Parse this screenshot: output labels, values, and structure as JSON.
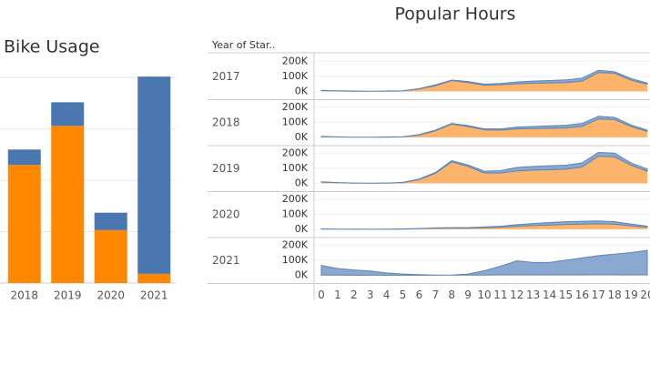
{
  "chart_data": [
    {
      "type": "bar",
      "title": "Bike Usage",
      "categories": [
        "2018",
        "2019",
        "2020",
        "2021"
      ],
      "series": [
        {
          "color": "#ff8800",
          "values": [
            2.3,
            3.06,
            1.03,
            0.18
          ]
        },
        {
          "color": "#4a77b0",
          "values": [
            0.3,
            0.46,
            0.34,
            3.84
          ]
        }
      ],
      "ylim": [
        0,
        4.2
      ],
      "gridlines": [
        1,
        2,
        3,
        4
      ],
      "stacked": true
    },
    {
      "type": "area",
      "title": "Popular Hours",
      "row_header": "Year of Star..",
      "x": [
        0,
        1,
        2,
        3,
        4,
        5,
        6,
        7,
        8,
        9,
        10,
        11,
        12,
        13,
        14,
        15,
        16,
        17,
        18,
        19,
        20
      ],
      "xlim": [
        0,
        20
      ],
      "ylim": [
        -55000,
        250000
      ],
      "yticks": [
        {
          "value": 0,
          "label": "0K"
        },
        {
          "value": 100000,
          "label": "100K"
        },
        {
          "value": 200000,
          "label": "200K"
        }
      ],
      "stacked": true,
      "panels": [
        {
          "label": "2017",
          "series": [
            {
              "color": "#fdb46a",
              "values": [
                5000,
                3000,
                1000,
                1000,
                1000,
                3000,
                16000,
                38000,
                72000,
                58000,
                42000,
                44000,
                50000,
                54000,
                56000,
                58000,
                68000,
                125000,
                120000,
                75000,
                47000
              ]
            },
            {
              "color": "#8aa8d0",
              "values": [
                2000,
                1000,
                1000,
                0,
                1000,
                1000,
                2000,
                5000,
                3000,
                7000,
                6000,
                8000,
                12000,
                14000,
                16000,
                18000,
                20000,
                15000,
                10000,
                10000,
                8000
              ]
            }
          ]
        },
        {
          "label": "2018",
          "series": [
            {
              "color": "#fdb46a",
              "values": [
                4000,
                2000,
                1000,
                1000,
                1000,
                3000,
                15000,
                43000,
                88000,
                72000,
                50000,
                48000,
                56000,
                58000,
                60000,
                62000,
                72000,
                122000,
                118000,
                72000,
                40000
              ]
            },
            {
              "color": "#8aa8d0",
              "values": [
                2000,
                1000,
                0,
                0,
                1000,
                1000,
                3000,
                5000,
                4000,
                6000,
                6000,
                8000,
                12000,
                14000,
                16000,
                18000,
                20000,
                18000,
                14000,
                10000,
                8000
              ]
            }
          ]
        },
        {
          "label": "2019",
          "series": [
            {
              "color": "#fdb46a",
              "values": [
                8000,
                4000,
                1000,
                1000,
                1000,
                5000,
                25000,
                66000,
                142000,
                112000,
                68000,
                68000,
                82000,
                88000,
                90000,
                94000,
                108000,
                180000,
                175000,
                120000,
                80000
              ]
            },
            {
              "color": "#8aa8d0",
              "values": [
                2000,
                1000,
                1000,
                0,
                1000,
                1000,
                3000,
                6000,
                8000,
                10000,
                12000,
                16000,
                23000,
                24000,
                26000,
                26000,
                27000,
                25000,
                25000,
                15000,
                15000
              ]
            }
          ]
        },
        {
          "label": "2020",
          "series": [
            {
              "color": "#fdb46a",
              "values": [
                1000,
                1000,
                0,
                0,
                0,
                1000,
                4000,
                7000,
                8000,
                8000,
                11000,
                14000,
                20000,
                24000,
                28000,
                32000,
                34000,
                36000,
                33000,
                23000,
                13000
              ]
            },
            {
              "color": "#8aa8d0",
              "values": [
                1000,
                0,
                1000,
                0,
                1000,
                1000,
                1000,
                2000,
                3000,
                3000,
                4000,
                6000,
                10000,
                14000,
                17000,
                18000,
                19000,
                19000,
                17000,
                12000,
                7000
              ]
            }
          ]
        },
        {
          "label": "2021",
          "series": [
            {
              "color": "#fdb46a",
              "values": [
                1000,
                1000,
                0,
                0,
                0,
                0,
                0,
                0,
                1000,
                1000,
                1000,
                2000,
                2000,
                2000,
                2000,
                2000,
                2000,
                3000,
                3000,
                2000,
                2000
              ]
            },
            {
              "color": "#8aa8d0",
              "values": [
                64000,
                44000,
                35000,
                28000,
                15000,
                8000,
                4000,
                1000,
                0,
                7000,
                29000,
                58000,
                93000,
                83000,
                83000,
                98000,
                113000,
                127000,
                137000,
                148000,
                163000
              ]
            }
          ]
        }
      ]
    }
  ]
}
